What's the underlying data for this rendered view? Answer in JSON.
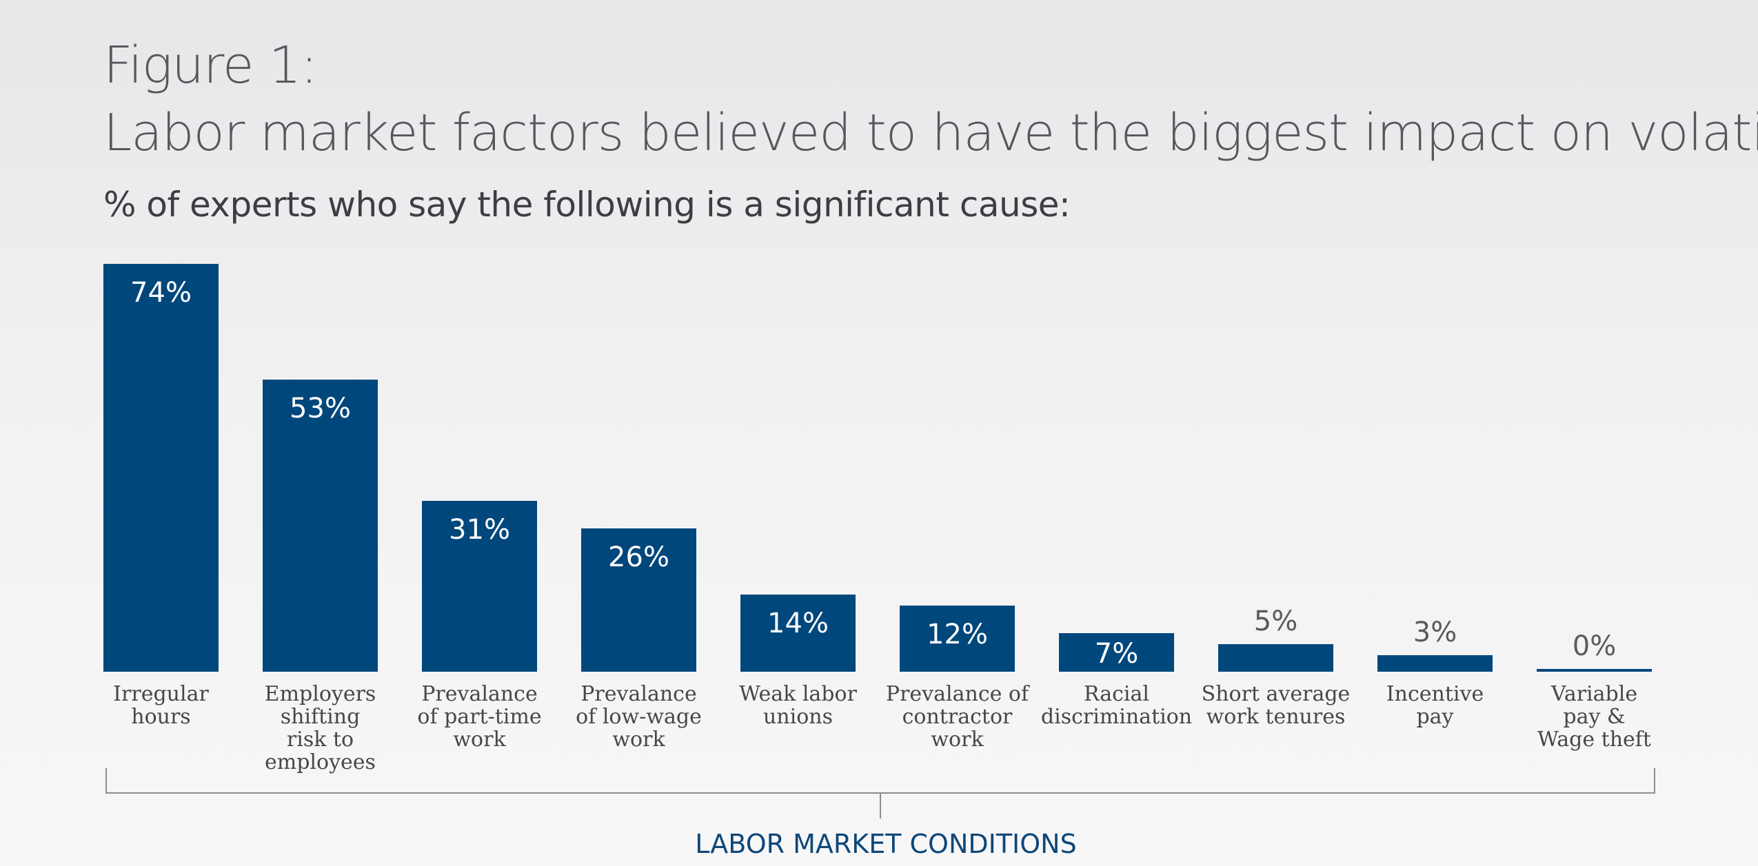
{
  "header": {
    "figure_label": "Figure 1:",
    "title": "Labor market factors believed to have the biggest impact on volatility",
    "subtitle": "% of experts who say the following is a significant cause:"
  },
  "colors": {
    "bar": "#00477c",
    "value_label_inside": "#ffffff",
    "value_label_outside": "#5a5b5f",
    "bracket": "#8c8d91",
    "group_label": "#0e4778"
  },
  "chart_data": {
    "type": "bar",
    "title": "Labor market factors believed to have the biggest impact on volatility",
    "subtitle": "% of experts who say the following is a significant cause:",
    "xlabel": "LABOR MARKET CONDITIONS",
    "ylabel": "",
    "ylim": [
      0,
      74
    ],
    "grid": false,
    "legend": "none",
    "categories": [
      "Irregular hours",
      "Employers shifting risk to employees",
      "Prevalance of part-time work",
      "Prevalance of low-wage work",
      "Weak labor unions",
      "Prevalance of contractor work",
      "Racial discrimination",
      "Short average work tenures",
      "Incentive pay",
      "Variable pay & Wage theft"
    ],
    "category_label_lines": [
      [
        "Irregular",
        "hours"
      ],
      [
        "Employers",
        "shifting",
        "risk to",
        "employees"
      ],
      [
        "Prevalance",
        "of part-time",
        "work"
      ],
      [
        "Prevalance",
        "of low-wage",
        "work"
      ],
      [
        "Weak labor",
        "unions"
      ],
      [
        "Prevalance of",
        "contractor",
        "work"
      ],
      [
        "Racial",
        "discrimination"
      ],
      [
        "Short average",
        "work tenures"
      ],
      [
        "Incentive",
        "pay"
      ],
      [
        "Variable",
        "pay &",
        "Wage theft"
      ]
    ],
    "values": [
      74,
      53,
      31,
      26,
      14,
      12,
      7,
      5,
      3,
      0
    ],
    "value_labels": [
      "74%",
      "53%",
      "31%",
      "26%",
      "14%",
      "12%",
      "7%",
      "5%",
      "3%",
      "0%"
    ],
    "group_label": "LABOR MARKET CONDITIONS"
  }
}
